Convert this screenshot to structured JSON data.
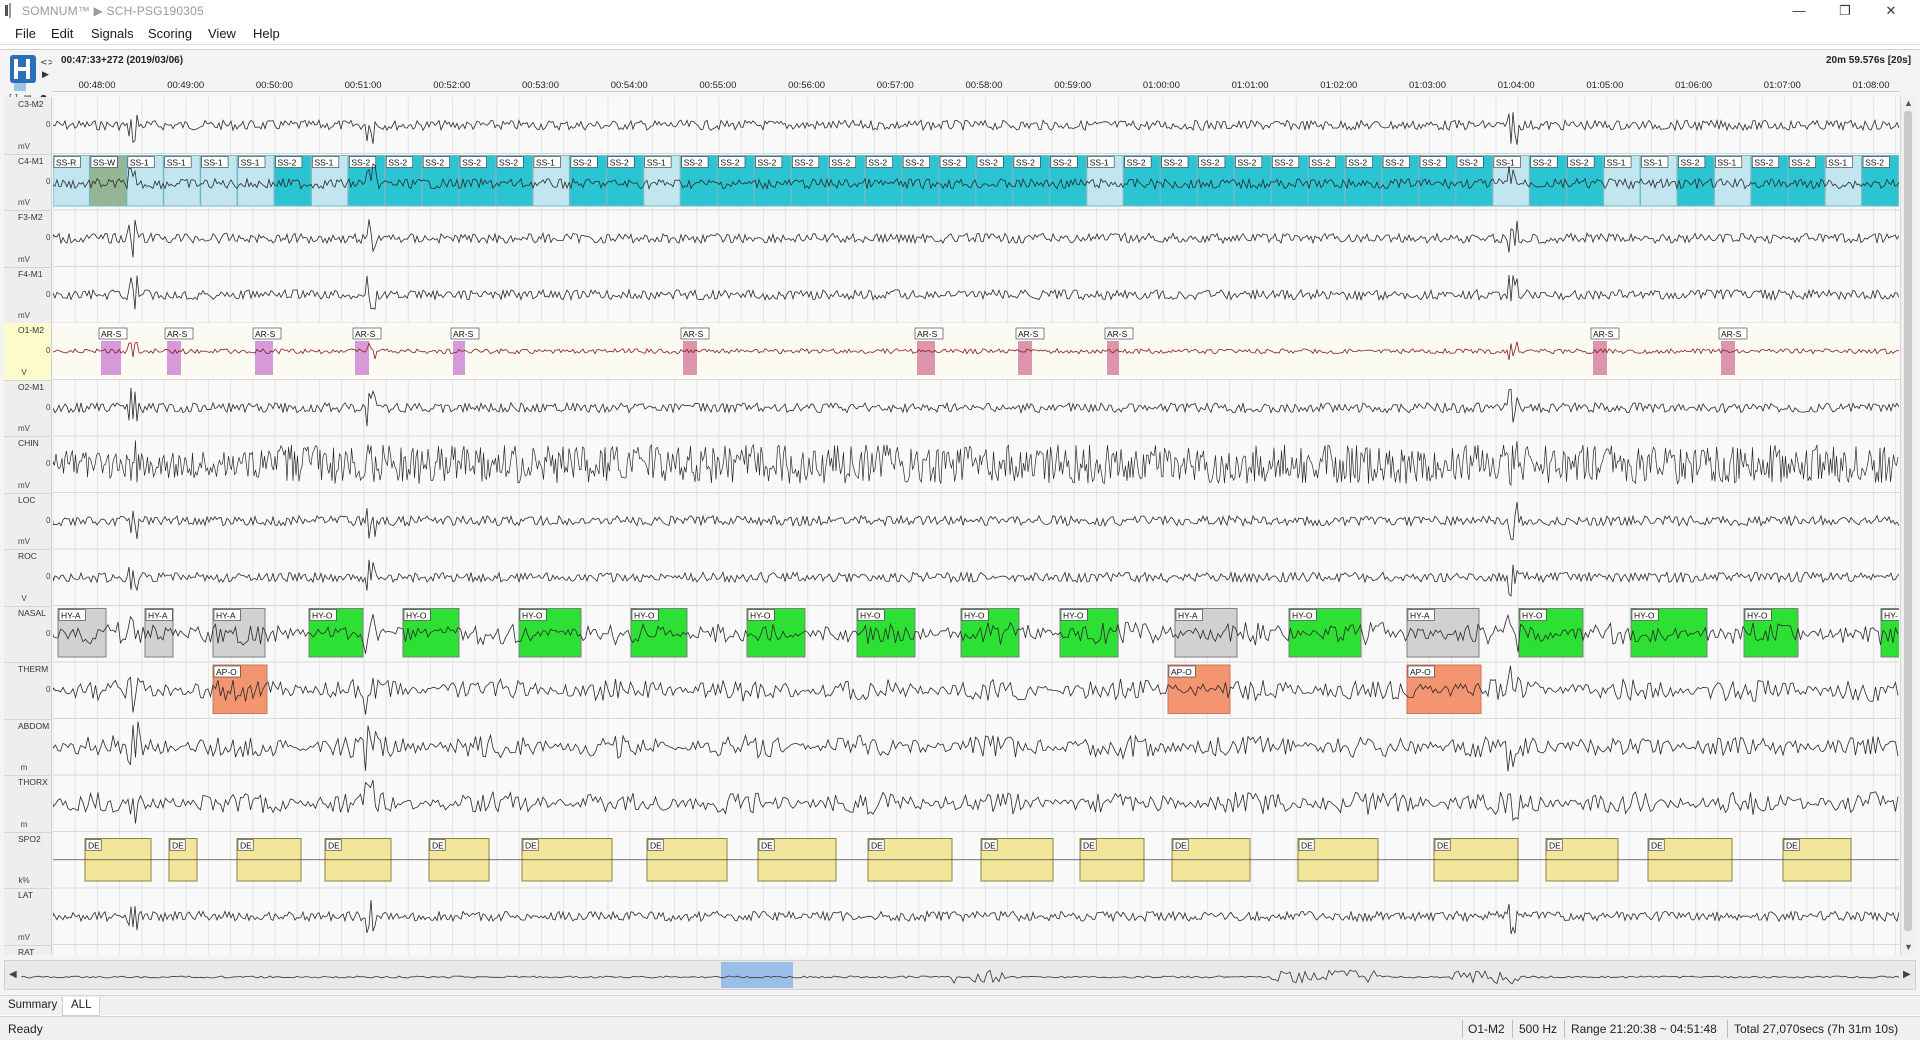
{
  "window": {
    "title": "SOMNUM™ ▶ SCH-PSG190305",
    "minimize": "—",
    "maximize": "❐",
    "close": "✕"
  },
  "menu": [
    "File",
    "Edit",
    "Signals",
    "Scoring",
    "View",
    "Help"
  ],
  "header": {
    "start_time": "00:47:33+272 (2019/03/06)",
    "window_length": "20m 59.576s [20s]"
  },
  "time_ticks": [
    "00:48:00",
    "00:49:00",
    "00:50:00",
    "00:51:00",
    "00:52:00",
    "00:53:00",
    "00:54:00",
    "00:55:00",
    "00:56:00",
    "00:57:00",
    "00:58:00",
    "00:59:00",
    "01:00:00",
    "01:01:00",
    "01:02:00",
    "01:03:00",
    "01:04:00",
    "01:05:00",
    "01:06:00",
    "01:07:00",
    "01:08:00"
  ],
  "channels": [
    {
      "name": "C3-M2",
      "unit": "mV",
      "zero": "0",
      "color": "#2a2a2a"
    },
    {
      "name": "C4-M1",
      "unit": "mV",
      "zero": "0",
      "color": "#2a2a2a"
    },
    {
      "name": "F3-M2",
      "unit": "mV",
      "zero": "0",
      "color": "#2a2a2a"
    },
    {
      "name": "F4-M1",
      "unit": "mV",
      "zero": "0",
      "color": "#2a2a2a"
    },
    {
      "name": "O1-M2",
      "unit": "V",
      "zero": "0",
      "color": "#8b1a1a"
    },
    {
      "name": "O2-M1",
      "unit": "mV",
      "zero": "0",
      "color": "#2a2a2a"
    },
    {
      "name": "CHIN",
      "unit": "mV",
      "zero": "0",
      "color": "#2a2a2a"
    },
    {
      "name": "LOC",
      "unit": "mV",
      "zero": "0",
      "color": "#2a2a2a"
    },
    {
      "name": "ROC",
      "unit": "V",
      "zero": "0",
      "color": "#2a2a2a"
    },
    {
      "name": "NASAL",
      "unit": "",
      "zero": "0",
      "color": "#2a2a2a"
    },
    {
      "name": "THERM",
      "unit": "",
      "zero": "0",
      "color": "#2a2a2a"
    },
    {
      "name": "ABDOM",
      "unit": "m",
      "zero": "",
      "color": "#2a2a2a"
    },
    {
      "name": "THORX",
      "unit": "m",
      "zero": "",
      "color": "#2a2a2a"
    },
    {
      "name": "SPO2",
      "unit": "k%",
      "zero": "",
      "color": "#2a2a2a"
    },
    {
      "name": "LAT",
      "unit": "mV",
      "zero": "",
      "color": "#2a2a2a"
    },
    {
      "name": "RAT",
      "unit": "",
      "zero": "",
      "color": "#2a2a2a"
    }
  ],
  "selected_channel": "O1-M2",
  "events": {
    "sleep_stages": [
      "SS-R",
      "SS-W",
      "SS-1",
      "SS-1",
      "SS-1",
      "SS-1",
      "SS-2",
      "SS-1",
      "SS-2",
      "SS-2",
      "SS-2",
      "SS-2",
      "SS-2",
      "SS-1",
      "SS-2",
      "SS-2",
      "SS-1",
      "SS-2",
      "SS-2",
      "SS-2",
      "SS-2",
      "SS-2",
      "SS-2",
      "SS-2",
      "SS-2",
      "SS-2",
      "SS-2",
      "SS-2",
      "SS-1",
      "SS-2",
      "SS-2",
      "SS-2",
      "SS-2",
      "SS-2",
      "SS-2",
      "SS-2",
      "SS-2",
      "SS-2",
      "SS-2",
      "SS-1",
      "SS-2",
      "SS-2",
      "SS-1",
      "SS-1",
      "SS-2",
      "SS-1",
      "SS-2",
      "SS-2",
      "SS-1",
      "SS-2"
    ],
    "arousals": [
      "AR-S",
      "AR-S",
      "AR-S",
      "AR-S",
      "AR-S",
      "AR-S",
      "AR-S",
      "AR-S",
      "AR-S",
      "AR-S",
      "AR-S"
    ],
    "nasal": [
      "HY-A",
      "HY-A",
      "HY-A",
      "HY-O",
      "HY-O",
      "HY-O",
      "HY-O",
      "HY-O",
      "HY-O",
      "HY-O",
      "HY-O",
      "HY-A",
      "HY-O",
      "HY-A",
      "HY-O",
      "HY-O",
      "HY-O",
      "HY-"
    ],
    "therm": [
      "AP-O",
      "AP-O",
      "AP-O"
    ],
    "spo2": [
      "DE",
      "DE",
      "DE",
      "DE",
      "DE",
      "DE",
      "DE",
      "DE",
      "DE",
      "DE",
      "DE",
      "DE",
      "DE",
      "DE",
      "DE",
      "DE",
      "DE"
    ]
  },
  "colors": {
    "stage_cyan": "#20c2d2",
    "stage_light": "#bfe6ef",
    "wake_green": "#8fb38f",
    "arousal_purple": "#d28fd6",
    "arousal_red": "#c84048",
    "hypopnea_green": "#22e02a",
    "hypopnea_gray": "#cfcfcf",
    "apnea_orange": "#f4906a",
    "desat_yellow": "#f2e697",
    "overview_highlight": "#8cb6e6"
  },
  "tabs": [
    "Summary",
    "ALL"
  ],
  "active_tab": "ALL",
  "status": {
    "ready": "Ready",
    "channel": "O1-M2",
    "rate": "500 Hz",
    "range": "Range 21:20:38 ~ 04:51:48",
    "total": "Total 27,070secs (7h 31m 10s)"
  },
  "icons": [
    "app-icon",
    "hypnogram-icon",
    "bracket-icon",
    "arrow-icon",
    "dot-icon",
    "scroll-up-icon",
    "scroll-down-icon",
    "scroll-left-icon",
    "scroll-right-icon"
  ]
}
